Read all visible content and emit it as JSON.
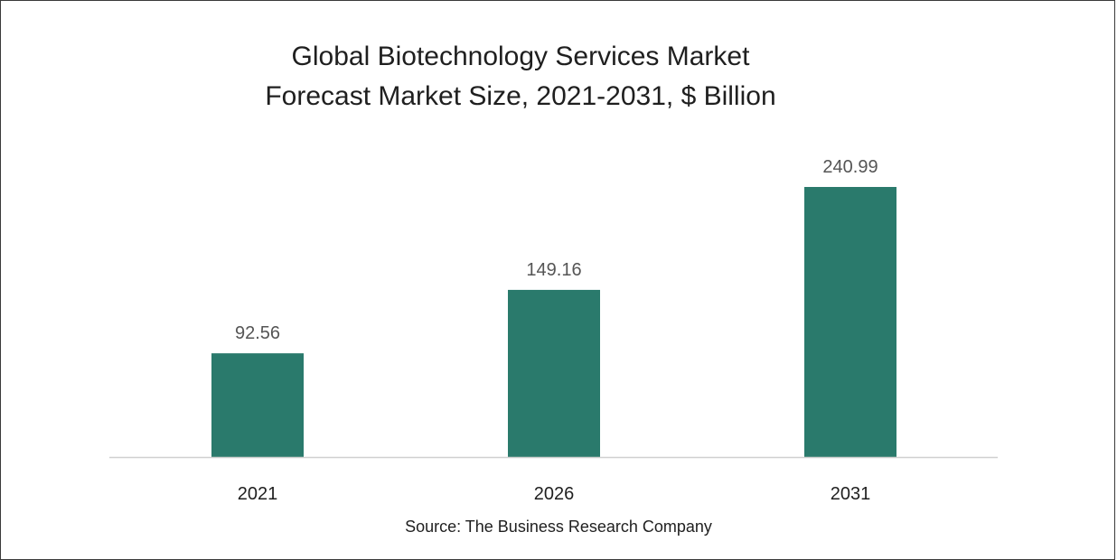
{
  "colors": {
    "bar": "#2a7a6c",
    "axis": "#d0d0d0",
    "value_label": "#555555",
    "tick_label": "#1f1f1f"
  },
  "chart_data": {
    "type": "bar",
    "title_line1": "Global Biotechnology Services Market",
    "title_line2": "Forecast Market Size, 2021-2031, $ Billion",
    "categories": [
      "2021",
      "2026",
      "2031"
    ],
    "values": [
      92.56,
      149.16,
      240.99
    ],
    "value_labels": [
      "92.56",
      "149.16",
      "240.99"
    ],
    "xlabel": "",
    "ylabel": "",
    "ylim": [
      0,
      270
    ],
    "grid": false,
    "legend": "none"
  },
  "footer": {
    "source": "Source: The Business Research Company"
  }
}
